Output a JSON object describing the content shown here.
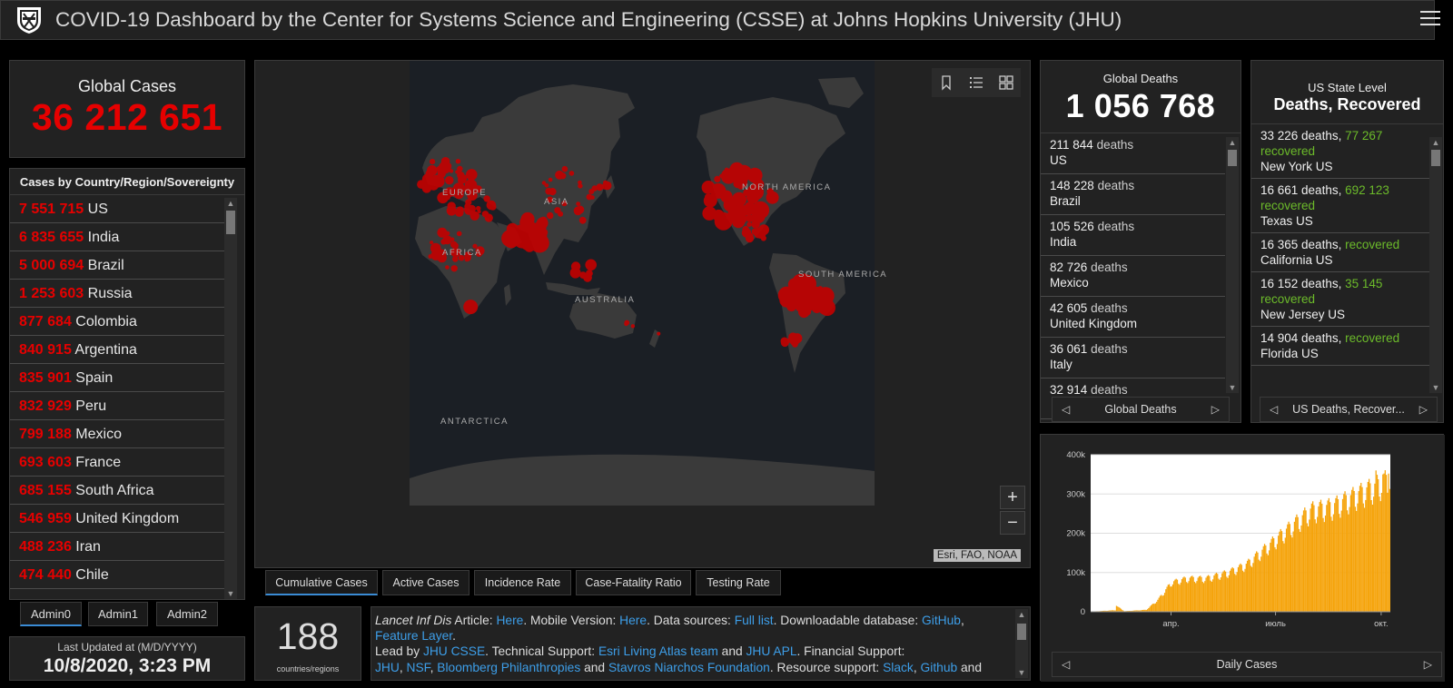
{
  "header": {
    "title": "COVID-19 Dashboard by the Center for Systems Science and Engineering (CSSE) at Johns Hopkins University (JHU)"
  },
  "global_cases": {
    "label": "Global Cases",
    "value": "36 212 651"
  },
  "country_list": {
    "header": "Cases by Country/Region/Sovereignty",
    "rows": [
      {
        "value": "7 551 715",
        "name": "US"
      },
      {
        "value": "6 835 655",
        "name": "India"
      },
      {
        "value": "5 000 694",
        "name": "Brazil"
      },
      {
        "value": "1 253 603",
        "name": "Russia"
      },
      {
        "value": "877 684",
        "name": "Colombia"
      },
      {
        "value": "840 915",
        "name": "Argentina"
      },
      {
        "value": "835 901",
        "name": "Spain"
      },
      {
        "value": "832 929",
        "name": "Peru"
      },
      {
        "value": "799 188",
        "name": "Mexico"
      },
      {
        "value": "693 603",
        "name": "France"
      },
      {
        "value": "685 155",
        "name": "South Africa"
      },
      {
        "value": "546 959",
        "name": "United Kingdom"
      },
      {
        "value": "488 236",
        "name": "Iran"
      },
      {
        "value": "474 440",
        "name": "Chile"
      }
    ]
  },
  "admin_tabs": [
    "Admin0",
    "Admin1",
    "Admin2"
  ],
  "last_updated": {
    "label": "Last Updated at (M/D/YYYY)",
    "value": "10/8/2020, 3:23 PM"
  },
  "map": {
    "labels": [
      "EUROPE",
      "ASIA",
      "AFRICA",
      "AUSTRALIA",
      "NORTH AMERICA",
      "SOUTH AMERICA",
      "ANTARCTICA"
    ],
    "attribution": "Esri, FAO, NOAA",
    "zoom_in": "+",
    "zoom_out": "−",
    "dot_color": "#cc0000"
  },
  "map_tabs": [
    "Cumulative Cases",
    "Active Cases",
    "Incidence Rate",
    "Case-Fatality Ratio",
    "Testing Rate"
  ],
  "countries_count": {
    "value": "188",
    "label": "countries/regions"
  },
  "info": {
    "journal": "Lancet Inf Dis",
    "article_text": " Article: ",
    "here1": "Here",
    "mobile_text": ". Mobile Version: ",
    "here2": "Here",
    "sources_text": ". Data sources: ",
    "full_list": "Full list",
    "db_text": ". Downloadable database: ",
    "github": "GitHub",
    "comma": ", ",
    "feature_layer": "Feature Layer",
    "dot": ".",
    "lead_text": "Lead by ",
    "jhu_csse": "JHU CSSE",
    "tech_text": ". Technical Support: ",
    "esri": "Esri Living Atlas team",
    "and1": " and ",
    "jhu_apl": "JHU APL",
    "fin_text": ". Financial Support:",
    "jhu": "JHU",
    "nsf": "NSF",
    "bloomberg": "Bloomberg Philanthropies",
    "and2": " and ",
    "stavros": "Stavros Niarchos Foundation",
    "res_text": ". Resource support: ",
    "slack": "Slack",
    "github2": "Github",
    "and3": " and"
  },
  "global_deaths": {
    "label": "Global Deaths",
    "value": "1 056 768",
    "word": "deaths",
    "rows": [
      {
        "value": "211 844",
        "country": "US"
      },
      {
        "value": "148 228",
        "country": "Brazil"
      },
      {
        "value": "105 526",
        "country": "India"
      },
      {
        "value": "82 726",
        "country": "Mexico"
      },
      {
        "value": "42 605",
        "country": "United Kingdom"
      },
      {
        "value": "36 061",
        "country": "Italy"
      },
      {
        "value": "32 914",
        "country": ""
      }
    ],
    "pager_label": "Global Deaths"
  },
  "us_state": {
    "label": "US State Level",
    "title": "Deaths, Recovered",
    "rows": [
      {
        "deaths": "33 226 deaths,",
        "recovered": "77 267",
        "word": "recovered",
        "state": "New York US"
      },
      {
        "deaths": "16 661 deaths,",
        "recovered": "692 123",
        "word": "recovered",
        "state": "Texas US"
      },
      {
        "deaths": "16 365 deaths,",
        "recovered": "",
        "word": "recovered",
        "state": "California US"
      },
      {
        "deaths": "16 152 deaths,",
        "recovered": "35 145",
        "word": "recovered",
        "state": "New Jersey US"
      },
      {
        "deaths": "14 904 deaths,",
        "recovered": "",
        "word": "recovered",
        "state": "Florida US"
      }
    ],
    "pager_label": "US Deaths, Recover..."
  },
  "chart_data": {
    "type": "bar",
    "title": "Daily Cases",
    "color": "#f5a30a",
    "yticks": [
      "0",
      "100k",
      "200k",
      "300k",
      "400k"
    ],
    "ylim": [
      0,
      400000
    ],
    "xticks": [
      "апр.",
      "июль",
      "окт."
    ],
    "start": "2020-01-22",
    "end": "2020-10-08",
    "xtick_dates": [
      "2020-04-01",
      "2020-07-01",
      "2020-10-01"
    ],
    "keypoints": [
      {
        "date": "2020-01-22",
        "value": 500
      },
      {
        "date": "2020-02-12",
        "value": 4000
      },
      {
        "date": "2020-02-13",
        "value": 15000
      },
      {
        "date": "2020-02-20",
        "value": 1500
      },
      {
        "date": "2020-03-10",
        "value": 5000
      },
      {
        "date": "2020-03-20",
        "value": 30000
      },
      {
        "date": "2020-04-01",
        "value": 75000
      },
      {
        "date": "2020-04-15",
        "value": 85000
      },
      {
        "date": "2020-05-01",
        "value": 85000
      },
      {
        "date": "2020-05-20",
        "value": 100000
      },
      {
        "date": "2020-06-05",
        "value": 120000
      },
      {
        "date": "2020-06-25",
        "value": 170000
      },
      {
        "date": "2020-07-15",
        "value": 220000
      },
      {
        "date": "2020-08-01",
        "value": 260000
      },
      {
        "date": "2020-08-20",
        "value": 270000
      },
      {
        "date": "2020-09-10",
        "value": 300000
      },
      {
        "date": "2020-09-25",
        "value": 320000
      },
      {
        "date": "2020-10-08",
        "value": 340000
      }
    ],
    "peaks": [
      {
        "date": "2020-09-26",
        "value": 360000
      },
      {
        "date": "2020-10-02",
        "value": 350000
      },
      {
        "date": "2020-10-07",
        "value": 352000
      }
    ],
    "pager_label": "Daily Cases"
  }
}
